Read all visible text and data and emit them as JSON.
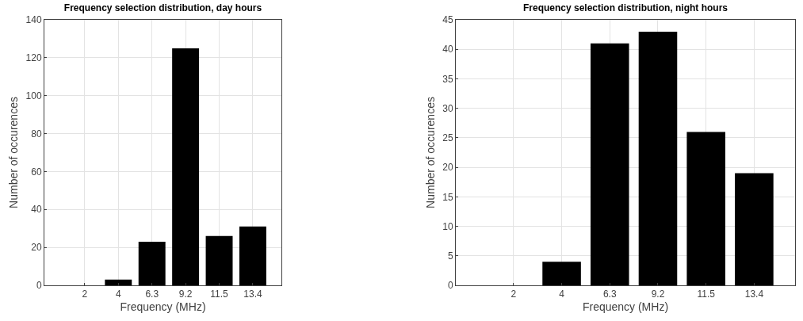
{
  "chart_data": [
    {
      "type": "bar",
      "title": "Frequency selection distribution, day hours",
      "xlabel": "Frequency (MHz)",
      "ylabel": "Number of occurences",
      "categories": [
        "2",
        "4",
        "6.3",
        "9.2",
        "11.5",
        "13.4"
      ],
      "values": [
        0,
        3,
        23,
        125,
        26,
        31
      ],
      "color": "#000000",
      "ylim": [
        0,
        140
      ],
      "yticks": [
        0,
        20,
        40,
        60,
        80,
        100,
        120,
        140
      ],
      "grid": true
    },
    {
      "type": "bar",
      "title": "Frequency selection distribution, night hours",
      "xlabel": "Frequency (MHz)",
      "ylabel": "Number of occurences",
      "categories": [
        "2",
        "4",
        "6.3",
        "9.2",
        "11.5",
        "13.4"
      ],
      "values": [
        0,
        4,
        41,
        43,
        26,
        19
      ],
      "color": "#000000",
      "ylim": [
        0,
        45
      ],
      "yticks": [
        0,
        5,
        10,
        15,
        20,
        25,
        30,
        35,
        40,
        45
      ],
      "grid": true
    }
  ]
}
